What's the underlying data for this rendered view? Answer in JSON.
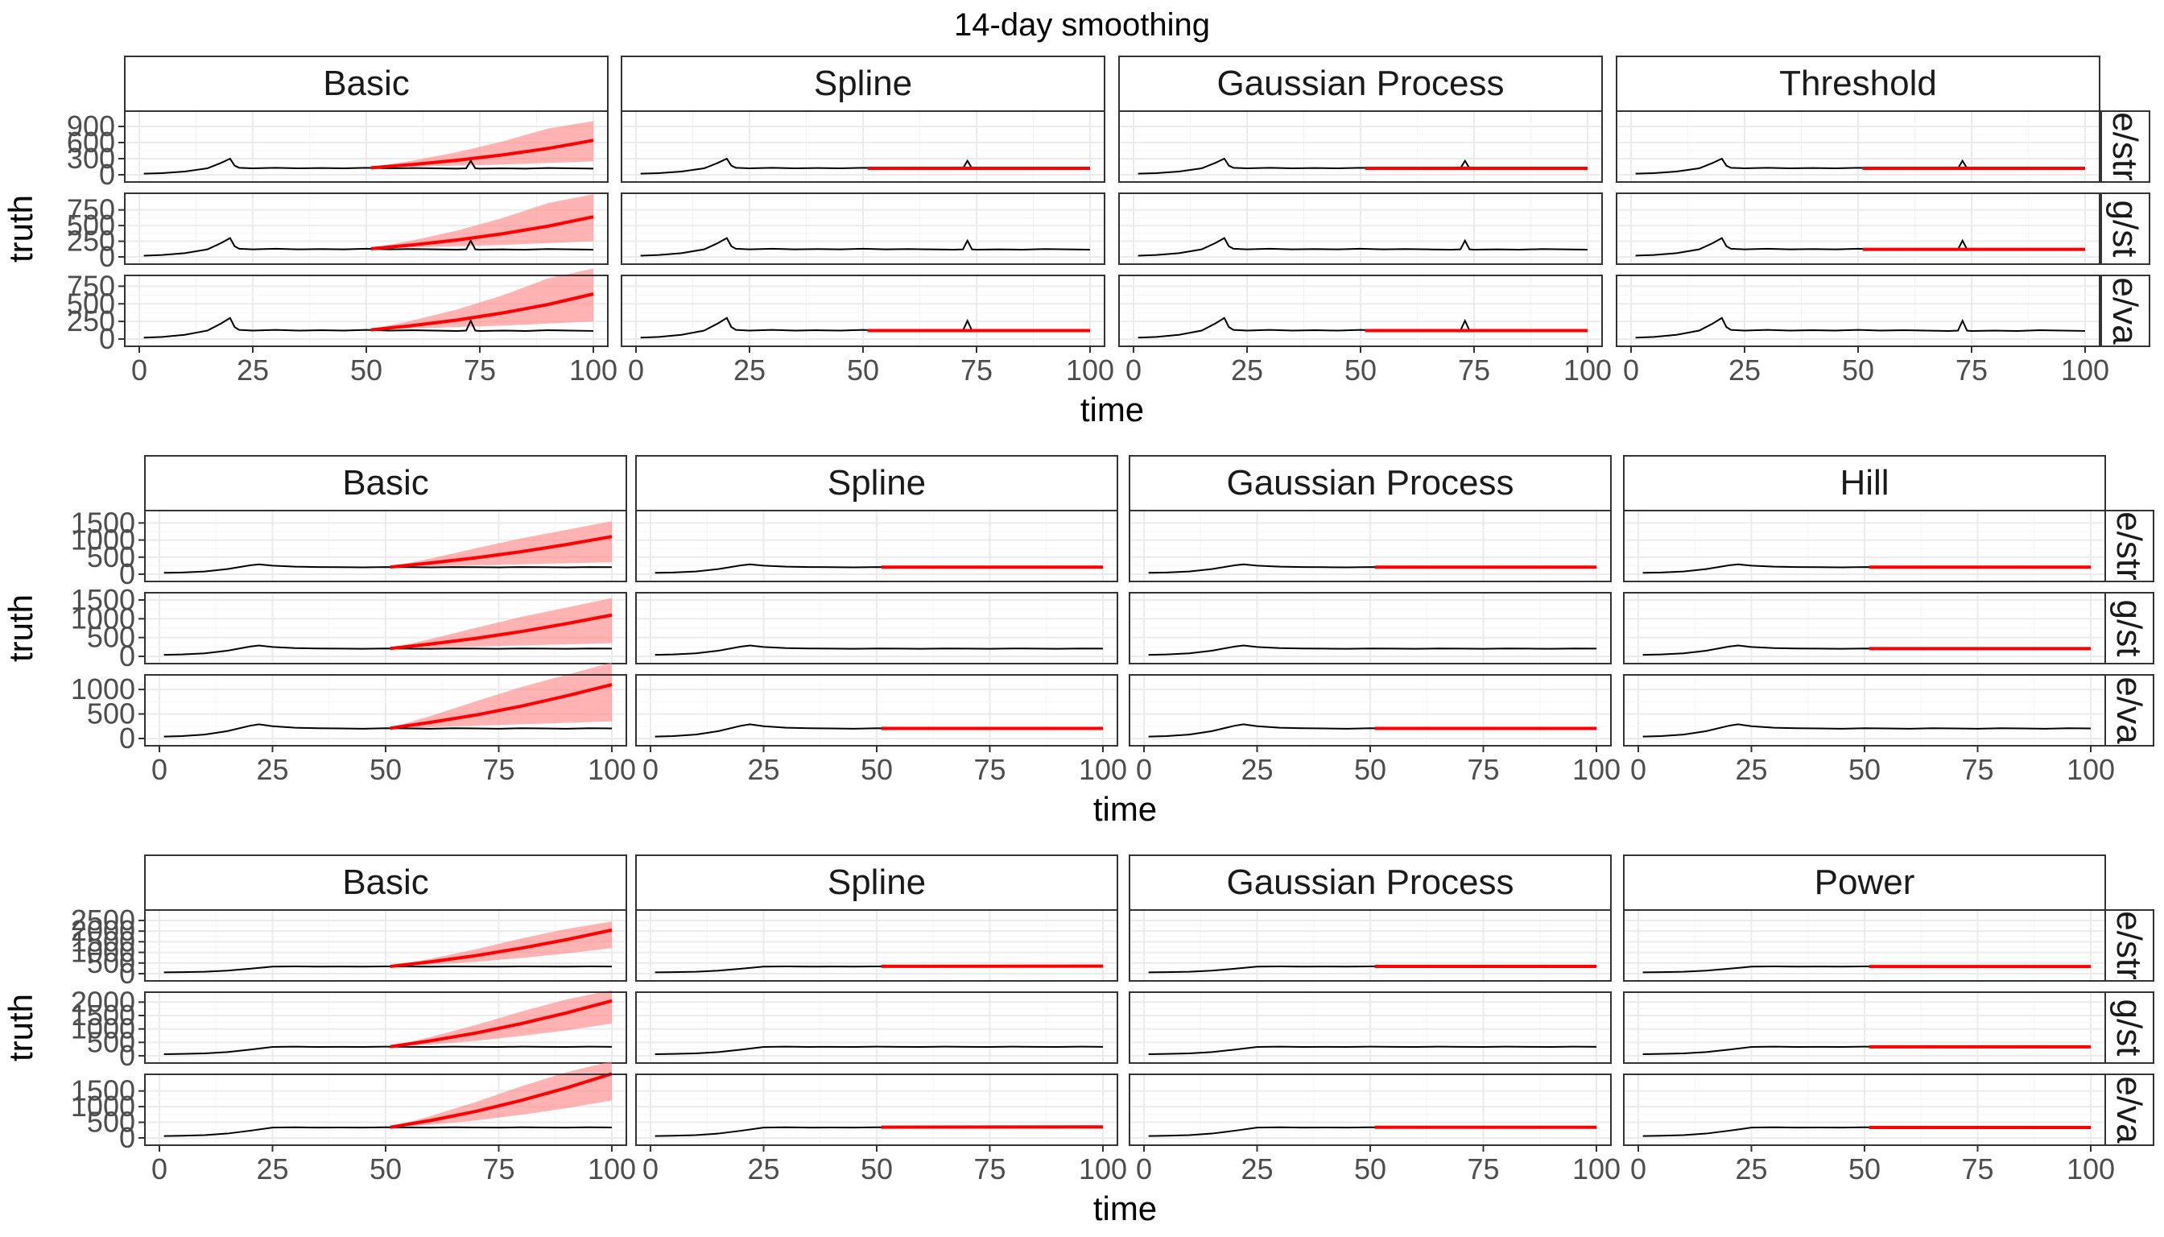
{
  "title": "14-day smoothing",
  "colors": {
    "truth": "#000000",
    "forecast": "#ff0000",
    "ribbon": "#ff8080",
    "strip_fill": "#ffffff",
    "panel_border": "#333333",
    "grid_major": "#ebebeb",
    "grid_minor": "#f5f5f5"
  },
  "chart_data": [
    {
      "type": "line",
      "xlabel": "time",
      "ylabel": "truth",
      "xlim": [
        0,
        100
      ],
      "x_ticks": [
        0,
        25,
        50,
        75,
        100
      ],
      "forecast_start": 51,
      "columns": [
        "Basic",
        "Spline",
        "Gaussian Process",
        "Threshold"
      ],
      "rows": [
        "e/str",
        "g/st",
        "e/va"
      ],
      "row_ylims": [
        [
          0,
          1050
        ],
        [
          0,
          900
        ],
        [
          0,
          800
        ]
      ],
      "row_ticks": [
        [
          0,
          300,
          600,
          900
        ],
        [
          0,
          250,
          500,
          750
        ],
        [
          0,
          250,
          500,
          750
        ]
      ],
      "truth_series": {
        "x": [
          1,
          5,
          10,
          15,
          18,
          20,
          21,
          22,
          25,
          30,
          35,
          40,
          45,
          50,
          55,
          60,
          65,
          70,
          72,
          73,
          74,
          75,
          80,
          85,
          90,
          95,
          100
        ],
        "values": [
          20,
          30,
          60,
          120,
          220,
          300,
          170,
          130,
          120,
          130,
          120,
          125,
          120,
          130,
          120,
          125,
          120,
          115,
          120,
          260,
          120,
          115,
          120,
          115,
          125,
          120,
          115
        ]
      },
      "forecasts": {
        "Basic": {
          "x": [
            51,
            60,
            70,
            80,
            90,
            100
          ],
          "median": [
            130,
            190,
            270,
            370,
            490,
            640
          ],
          "lower": [
            130,
            150,
            170,
            190,
            220,
            250
          ],
          "upper": [
            140,
            260,
            420,
            620,
            860,
            1000
          ]
        },
        "Spline": {
          "x": [
            51,
            100
          ],
          "median": [
            120,
            120
          ],
          "lower": [
            110,
            110
          ],
          "upper": [
            130,
            130
          ]
        },
        "Gaussian Process": {
          "x": [
            51,
            100
          ],
          "median": [
            120,
            120
          ],
          "lower": [
            110,
            110
          ],
          "upper": [
            130,
            130
          ]
        },
        "Threshold": {
          "x": [
            51,
            100
          ],
          "median": [
            120,
            120
          ],
          "lower": [
            112,
            112
          ],
          "upper": [
            128,
            128
          ]
        }
      },
      "panels_with_forecast": [
        [
          true,
          true,
          true,
          true
        ],
        [
          true,
          false,
          false,
          true
        ],
        [
          true,
          true,
          true,
          false
        ]
      ]
    },
    {
      "type": "line",
      "xlabel": "time",
      "ylabel": "truth",
      "xlim": [
        0,
        100
      ],
      "x_ticks": [
        0,
        25,
        50,
        75,
        100
      ],
      "forecast_start": 51,
      "columns": [
        "Basic",
        "Spline",
        "Gaussian Process",
        "Hill"
      ],
      "rows": [
        "e/str",
        "g/st",
        "e/va"
      ],
      "row_ylims": [
        [
          0,
          1650
        ],
        [
          0,
          1500
        ],
        [
          0,
          1150
        ]
      ],
      "row_ticks": [
        [
          0,
          500,
          1000,
          1500
        ],
        [
          0,
          500,
          1000,
          1500
        ],
        [
          0,
          500,
          1000
        ]
      ],
      "truth_series": {
        "x": [
          1,
          5,
          10,
          15,
          20,
          22,
          25,
          30,
          35,
          40,
          45,
          50,
          55,
          60,
          65,
          70,
          75,
          80,
          85,
          90,
          95,
          100
        ],
        "values": [
          40,
          50,
          80,
          150,
          260,
          290,
          250,
          220,
          210,
          205,
          200,
          210,
          205,
          200,
          210,
          205,
          200,
          210,
          205,
          200,
          210,
          205
        ]
      },
      "forecasts": {
        "Basic": {
          "x": [
            51,
            60,
            70,
            80,
            90,
            100
          ],
          "median": [
            210,
            330,
            480,
            660,
            870,
            1100
          ],
          "lower": [
            205,
            230,
            260,
            290,
            320,
            350
          ],
          "upper": [
            220,
            460,
            760,
            1050,
            1300,
            1550
          ]
        },
        "Spline": {
          "x": [
            51,
            100
          ],
          "median": [
            205,
            205
          ],
          "lower": [
            195,
            195
          ],
          "upper": [
            215,
            215
          ]
        },
        "Gaussian Process": {
          "x": [
            51,
            100
          ],
          "median": [
            205,
            205
          ],
          "lower": [
            195,
            195
          ],
          "upper": [
            215,
            215
          ]
        },
        "Hill": {
          "x": [
            51,
            100
          ],
          "median": [
            205,
            205
          ],
          "lower": [
            195,
            195
          ],
          "upper": [
            215,
            215
          ]
        }
      },
      "panels_with_forecast": [
        [
          true,
          true,
          true,
          true
        ],
        [
          true,
          false,
          false,
          true
        ],
        [
          true,
          true,
          true,
          false
        ]
      ]
    },
    {
      "type": "line",
      "xlabel": "time",
      "ylabel": "truth",
      "xlim": [
        0,
        100
      ],
      "x_ticks": [
        0,
        25,
        50,
        75,
        100
      ],
      "forecast_start": 51,
      "columns": [
        "Basic",
        "Spline",
        "Gaussian Process",
        "Power"
      ],
      "rows": [
        "e/str",
        "g/st",
        "e/va"
      ],
      "row_ylims": [
        [
          0,
          2650
        ],
        [
          0,
          2100
        ],
        [
          0,
          1800
        ]
      ],
      "row_ticks": [
        [
          0,
          500,
          1000,
          1500,
          2000,
          2500
        ],
        [
          0,
          500,
          1000,
          1500,
          2000
        ],
        [
          0,
          500,
          1000,
          1500
        ]
      ],
      "truth_series": {
        "x": [
          1,
          5,
          10,
          15,
          20,
          25,
          30,
          35,
          40,
          45,
          50,
          55,
          60,
          65,
          70,
          75,
          80,
          85,
          90,
          95,
          100
        ],
        "values": [
          60,
          70,
          90,
          140,
          230,
          330,
          340,
          330,
          335,
          330,
          340,
          335,
          330,
          340,
          335,
          330,
          340,
          335,
          330,
          340,
          335
        ]
      },
      "forecasts": {
        "Basic": {
          "x": [
            51,
            60,
            70,
            80,
            90,
            100
          ],
          "median": [
            340,
            560,
            850,
            1200,
            1600,
            2050
          ],
          "lower": [
            335,
            420,
            560,
            740,
            950,
            1200
          ],
          "upper": [
            345,
            700,
            1150,
            1650,
            2100,
            2450
          ]
        },
        "Spline": {
          "x": [
            51,
            100
          ],
          "median": [
            345,
            355
          ],
          "lower": [
            330,
            300
          ],
          "upper": [
            360,
            400
          ]
        },
        "Gaussian Process": {
          "x": [
            51,
            100
          ],
          "median": [
            340,
            340
          ],
          "lower": [
            325,
            325
          ],
          "upper": [
            355,
            355
          ]
        },
        "Power": {
          "x": [
            51,
            100
          ],
          "median": [
            335,
            335
          ],
          "lower": [
            325,
            325
          ],
          "upper": [
            345,
            345
          ]
        }
      },
      "panels_with_forecast": [
        [
          true,
          true,
          true,
          true
        ],
        [
          true,
          false,
          false,
          true
        ],
        [
          true,
          true,
          true,
          true
        ]
      ]
    }
  ]
}
